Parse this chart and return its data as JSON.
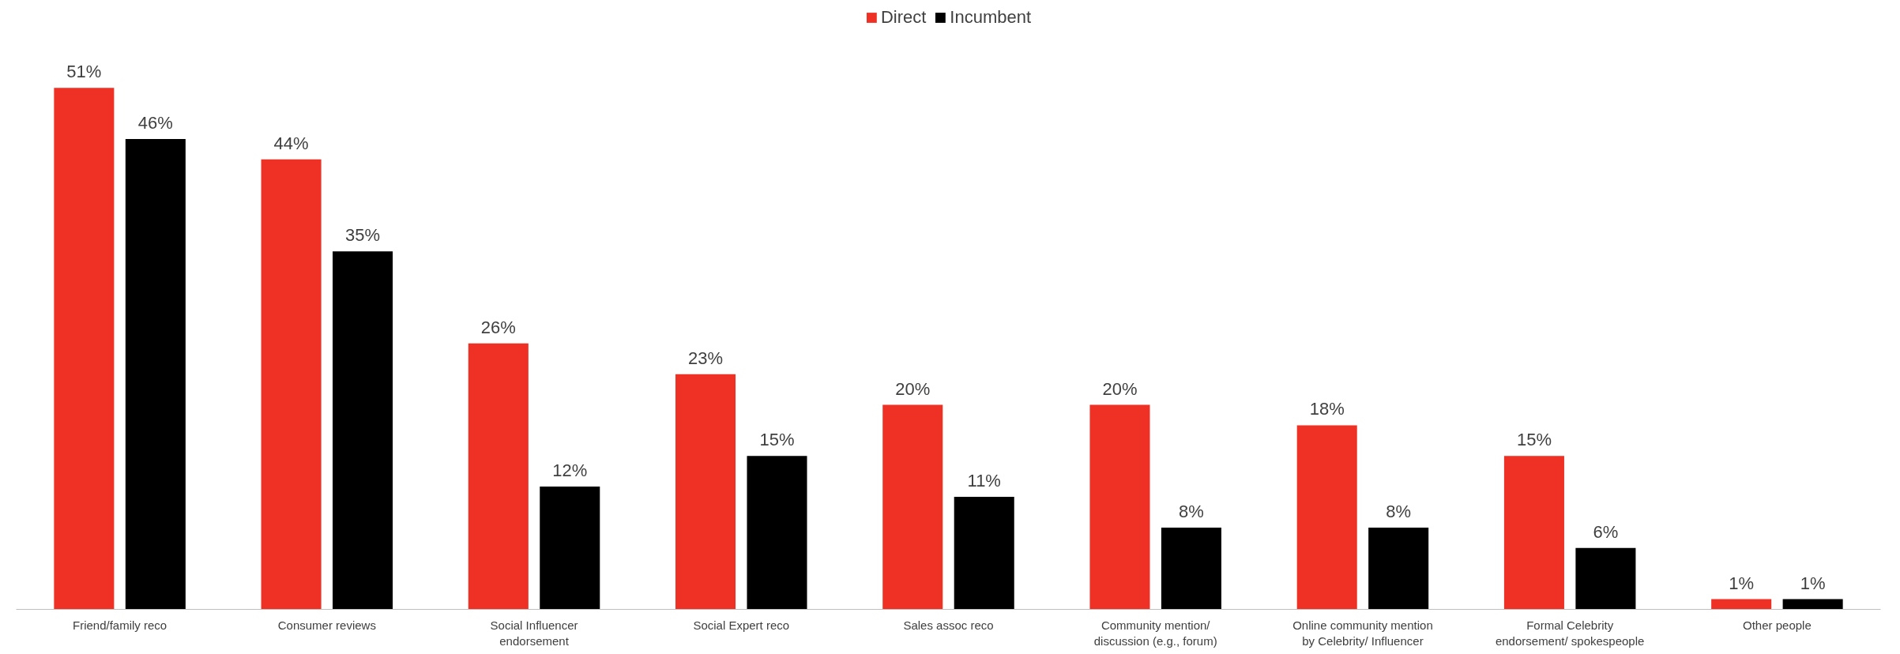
{
  "chart_data": {
    "type": "bar",
    "categories": [
      "Friend/family reco",
      "Consumer reviews",
      "Social Influencer endorsement",
      "Social Expert reco",
      "Sales assoc reco",
      "Community mention/ discussion (e.g., forum)",
      "Online community mention by Celebrity/ Influencer",
      "Formal Celebrity endorsement/ spokespeople",
      "Other people"
    ],
    "series": [
      {
        "name": "Direct",
        "color": "#ee3124",
        "values": [
          51,
          44,
          26,
          23,
          20,
          20,
          18,
          15,
          1
        ],
        "value_labels": [
          "51%",
          "44%",
          "26%",
          "23%",
          "20%",
          "20%",
          "18%",
          "15%",
          "1%"
        ]
      },
      {
        "name": "Incumbent",
        "color": "#000000",
        "values": [
          46,
          35,
          12,
          15,
          11,
          8,
          8,
          6,
          1
        ],
        "value_labels": [
          "46%",
          "35%",
          "12%",
          "15%",
          "11%",
          "8%",
          "8%",
          "6%",
          "1%"
        ]
      }
    ],
    "legend": "top",
    "grid": false
  }
}
